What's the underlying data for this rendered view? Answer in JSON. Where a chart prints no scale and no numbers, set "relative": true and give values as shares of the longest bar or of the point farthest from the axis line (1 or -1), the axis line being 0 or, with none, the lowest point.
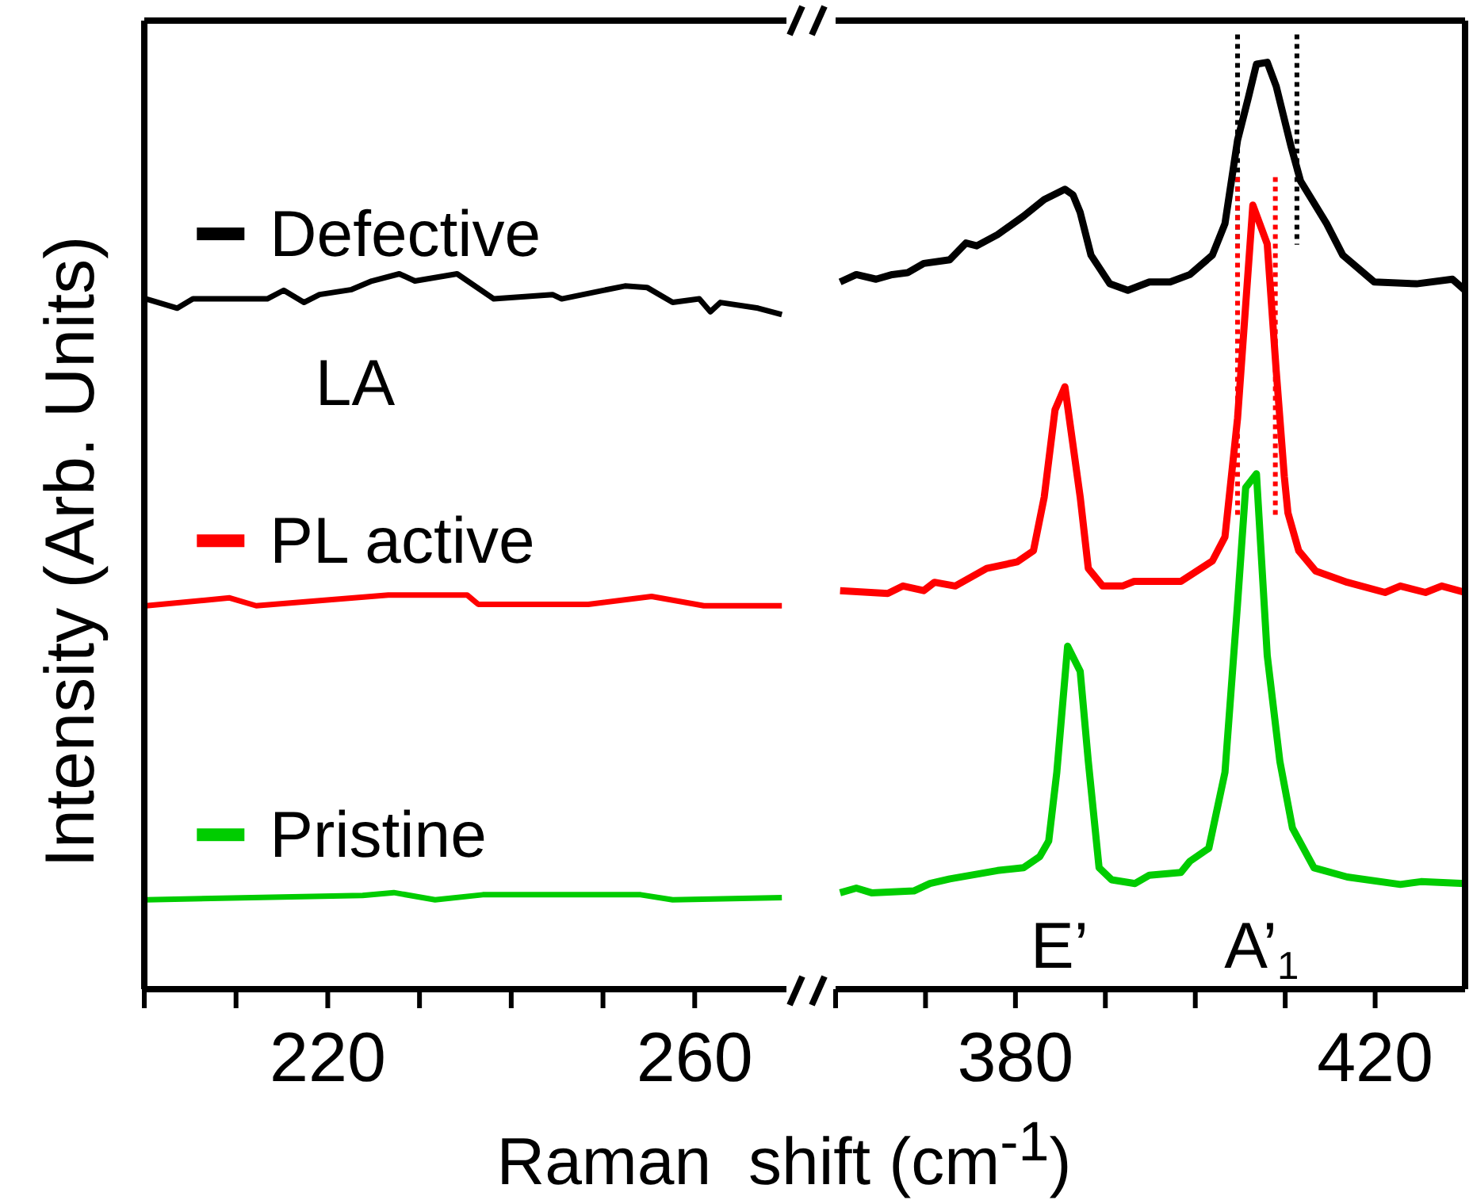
{
  "chart_data": [
    {
      "type": "line",
      "ylabel": "Intensity (Arb. Units)",
      "xlabel": "Raman  shift (cm$^{-1}$)",
      "relative": true,
      "marker": "none",
      "line_style": "solid",
      "xlim": [
        200,
        270
      ],
      "xticks": [
        {
          "value": 200,
          "label": null
        },
        {
          "value": 210,
          "label": null
        },
        220,
        {
          "value": 230,
          "label": null
        },
        {
          "value": 240,
          "label": null
        },
        {
          "value": 250,
          "label": null
        },
        260
      ],
      "series": [
        {
          "name": "Defective",
          "color": "#000000",
          "x": [
            200.2,
            203.6,
            205.3,
            213.4,
            215.2,
            217.4,
            219.1,
            222.6,
            224.8,
            227.8,
            229.5,
            234.1,
            238.1,
            244.5,
            245.5,
            252.4,
            254.8,
            257.6,
            260.5,
            261.7,
            262.8,
            266.9,
            269.5
          ],
          "values": [
            0.965,
            0.952,
            0.965,
            0.965,
            0.977,
            0.96,
            0.971,
            0.978,
            0.99,
            1.0,
            0.99,
            1.0,
            0.965,
            0.971,
            0.965,
            0.983,
            0.981,
            0.96,
            0.965,
            0.947,
            0.96,
            0.952,
            0.943
          ]
        },
        {
          "name": "PL active",
          "color": "#ff0000",
          "x": [
            200.2,
            209.3,
            212.2,
            226.6,
            231.2,
            235.2,
            236.4,
            248.4,
            255.3,
            261.0,
            269.5
          ],
          "values": [
            0.536,
            0.547,
            0.536,
            0.551,
            0.551,
            0.551,
            0.538,
            0.538,
            0.549,
            0.536,
            0.536
          ]
        },
        {
          "name": "Pristine",
          "color": "#00cc00",
          "x": [
            200.2,
            223.8,
            227.2,
            231.7,
            236.9,
            254.1,
            257.6,
            269.5
          ],
          "values": [
            0.125,
            0.131,
            0.135,
            0.125,
            0.132,
            0.132,
            0.125,
            0.128
          ]
        }
      ],
      "annotations": [
        "LA"
      ],
      "legend": "left"
    },
    {
      "type": "line",
      "relative": true,
      "marker": "none",
      "line_style": "solid",
      "xlim": [
        360,
        430
      ],
      "xticks": [
        {
          "value": 360,
          "label": null
        },
        {
          "value": 370,
          "label": null
        },
        380,
        {
          "value": 390,
          "label": null
        },
        {
          "value": 400,
          "label": null
        },
        {
          "value": 410,
          "label": null
        },
        420
      ],
      "series": [
        {
          "color": "#000000",
          "x": [
            360.5,
            362.3,
            364.5,
            366.3,
            368.0,
            369.8,
            372.7,
            374.5,
            375.7,
            378.0,
            380.9,
            383.2,
            385.5,
            386.4,
            387.2,
            388.4,
            390.5,
            392.5,
            394.9,
            397.2,
            399.4,
            401.9,
            403.3,
            404.7,
            405.9,
            406.8,
            408.0,
            409.0,
            410.6,
            411.7,
            414.6,
            416.4,
            419.9,
            424.6,
            428.6,
            430.0
          ],
          "values": [
            0.763,
            0.771,
            0.766,
            0.771,
            0.773,
            0.783,
            0.787,
            0.805,
            0.802,
            0.814,
            0.834,
            0.852,
            0.863,
            0.857,
            0.838,
            0.792,
            0.761,
            0.754,
            0.763,
            0.763,
            0.771,
            0.792,
            0.826,
            0.916,
            0.962,
            0.998,
            1.0,
            0.974,
            0.911,
            0.872,
            0.826,
            0.792,
            0.763,
            0.761,
            0.766,
            0.754
          ]
        },
        {
          "color": "#ff0000",
          "x": [
            360.5,
            365.8,
            367.5,
            369.8,
            371.0,
            373.3,
            376.8,
            380.2,
            382.0,
            383.2,
            384.4,
            385.5,
            387.2,
            388.1,
            389.7,
            391.9,
            393.2,
            398.4,
            401.9,
            403.3,
            404.7,
            406.4,
            408.0,
            409.0,
            409.9,
            410.3,
            411.5,
            413.4,
            416.9,
            421.1,
            422.8,
            425.6,
            427.4,
            430.0
          ],
          "values": [
            0.43,
            0.427,
            0.435,
            0.43,
            0.439,
            0.435,
            0.454,
            0.461,
            0.473,
            0.531,
            0.625,
            0.65,
            0.531,
            0.454,
            0.435,
            0.435,
            0.44,
            0.44,
            0.462,
            0.488,
            0.616,
            0.846,
            0.804,
            0.667,
            0.553,
            0.514,
            0.473,
            0.451,
            0.439,
            0.428,
            0.435,
            0.428,
            0.435,
            0.428
          ]
        },
        {
          "color": "#00cc00",
          "x": [
            360.5,
            362.3,
            364.0,
            368.7,
            370.5,
            372.7,
            378.0,
            380.9,
            382.7,
            383.7,
            384.6,
            385.8,
            387.2,
            388.1,
            389.3,
            390.7,
            393.3,
            394.9,
            398.4,
            399.4,
            401.5,
            403.3,
            404.7,
            405.6,
            406.8,
            408.0,
            409.4,
            410.8,
            413.2,
            416.9,
            422.8,
            425.1,
            430.0
          ],
          "values": [
            0.104,
            0.109,
            0.104,
            0.106,
            0.114,
            0.119,
            0.128,
            0.131,
            0.143,
            0.16,
            0.234,
            0.37,
            0.343,
            0.246,
            0.131,
            0.118,
            0.114,
            0.123,
            0.126,
            0.138,
            0.152,
            0.234,
            0.416,
            0.541,
            0.556,
            0.36,
            0.246,
            0.174,
            0.131,
            0.121,
            0.113,
            0.116,
            0.114
          ]
        }
      ],
      "ref_lines": [
        {
          "axis": "x",
          "value": 404.7,
          "color": "#000000",
          "line_style": "dotted"
        },
        {
          "axis": "x",
          "value": 411.3,
          "color": "#000000",
          "line_style": "dotted"
        },
        {
          "axis": "x",
          "value": 404.7,
          "color": "#ff0000",
          "line_style": "dotted"
        },
        {
          "axis": "x",
          "value": 408.9,
          "color": "#ff0000",
          "line_style": "dotted"
        }
      ],
      "annotations": [
        "E’",
        "A’$_{1}$"
      ]
    }
  ]
}
